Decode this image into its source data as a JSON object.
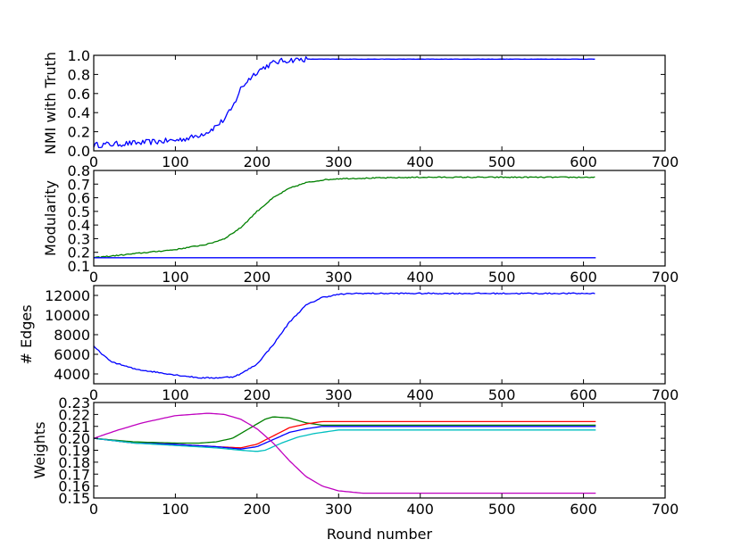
{
  "chart_data": [
    {
      "type": "line",
      "ylabel": "NMI with Truth",
      "xlabel": "",
      "xlim": [
        0,
        700
      ],
      "ylim": [
        0.0,
        1.0
      ],
      "xticks": [
        0,
        100,
        200,
        300,
        400,
        500,
        600,
        700
      ],
      "yticks": [
        0.0,
        0.2,
        0.4,
        0.6,
        0.8,
        1.0
      ],
      "ytick_decimals": 1,
      "series": [
        {
          "color": "#0000ff",
          "noise": 0.03,
          "x": [
            0,
            50,
            100,
            120,
            140,
            150,
            160,
            170,
            175,
            180,
            190,
            200,
            210,
            220,
            230,
            240,
            260,
            300,
            400,
            500,
            615
          ],
          "y": [
            0.06,
            0.08,
            0.11,
            0.14,
            0.2,
            0.26,
            0.33,
            0.45,
            0.55,
            0.65,
            0.75,
            0.83,
            0.88,
            0.92,
            0.94,
            0.95,
            0.96,
            0.96,
            0.96,
            0.96,
            0.96
          ]
        }
      ]
    },
    {
      "type": "line",
      "ylabel": "Modularity",
      "xlabel": "",
      "xlim": [
        0,
        700
      ],
      "ylim": [
        0.1,
        0.8
      ],
      "xticks": [
        0,
        100,
        200,
        300,
        400,
        500,
        600,
        700
      ],
      "yticks": [
        0.1,
        0.2,
        0.3,
        0.4,
        0.5,
        0.6,
        0.7,
        0.8
      ],
      "ytick_decimals": 1,
      "series": [
        {
          "color": "#008000",
          "noise": 0.004,
          "x": [
            0,
            50,
            100,
            140,
            160,
            180,
            200,
            220,
            240,
            260,
            280,
            300,
            350,
            400,
            615
          ],
          "y": [
            0.16,
            0.19,
            0.22,
            0.26,
            0.3,
            0.38,
            0.5,
            0.6,
            0.67,
            0.71,
            0.73,
            0.74,
            0.745,
            0.75,
            0.75
          ]
        },
        {
          "color": "#0000ff",
          "noise": 0,
          "x": [
            0,
            615
          ],
          "y": [
            0.16,
            0.16
          ]
        }
      ]
    },
    {
      "type": "line",
      "ylabel": "# Edges",
      "xlabel": "",
      "xlim": [
        0,
        700
      ],
      "ylim": [
        3000,
        13000
      ],
      "xticks": [
        0,
        100,
        200,
        300,
        400,
        500,
        600,
        700
      ],
      "yticks": [
        4000,
        6000,
        8000,
        10000,
        12000
      ],
      "ytick_decimals": 0,
      "series": [
        {
          "color": "#0000ff",
          "noise": 60,
          "x": [
            0,
            20,
            50,
            100,
            130,
            150,
            170,
            180,
            200,
            220,
            240,
            260,
            280,
            300,
            320,
            400,
            615
          ],
          "y": [
            6800,
            5300,
            4500,
            3900,
            3600,
            3600,
            3700,
            4000,
            5000,
            7000,
            9300,
            11000,
            11800,
            12100,
            12200,
            12200,
            12200
          ]
        }
      ]
    },
    {
      "type": "line",
      "ylabel": "Weights",
      "xlabel": "Round number",
      "xlim": [
        0,
        700
      ],
      "ylim": [
        0.15,
        0.23
      ],
      "xticks": [
        0,
        100,
        200,
        300,
        400,
        500,
        600,
        700
      ],
      "yticks": [
        0.15,
        0.16,
        0.17,
        0.18,
        0.19,
        0.2,
        0.21,
        0.22,
        0.23
      ],
      "ytick_decimals": 2,
      "series": [
        {
          "color": "#008000",
          "noise": 0,
          "x": [
            0,
            50,
            100,
            130,
            150,
            170,
            190,
            210,
            220,
            240,
            260,
            280,
            300,
            615
          ],
          "y": [
            0.2,
            0.197,
            0.196,
            0.196,
            0.197,
            0.2,
            0.208,
            0.216,
            0.218,
            0.217,
            0.213,
            0.211,
            0.211,
            0.211
          ]
        },
        {
          "color": "#ff0000",
          "noise": 0,
          "x": [
            0,
            50,
            100,
            150,
            180,
            200,
            220,
            240,
            260,
            280,
            300,
            615
          ],
          "y": [
            0.2,
            0.196,
            0.195,
            0.193,
            0.192,
            0.195,
            0.202,
            0.209,
            0.212,
            0.214,
            0.214,
            0.214
          ]
        },
        {
          "color": "#0000ff",
          "noise": 0,
          "x": [
            0,
            50,
            100,
            150,
            180,
            200,
            220,
            240,
            260,
            280,
            300,
            615
          ],
          "y": [
            0.2,
            0.196,
            0.195,
            0.193,
            0.191,
            0.193,
            0.199,
            0.205,
            0.208,
            0.21,
            0.21,
            0.21
          ]
        },
        {
          "color": "#00bfbf",
          "noise": 0,
          "x": [
            0,
            50,
            100,
            150,
            180,
            200,
            210,
            230,
            250,
            270,
            290,
            300,
            615
          ],
          "y": [
            0.2,
            0.196,
            0.194,
            0.192,
            0.19,
            0.189,
            0.19,
            0.196,
            0.201,
            0.204,
            0.206,
            0.207,
            0.207
          ]
        },
        {
          "color": "#bf00bf",
          "noise": 0,
          "x": [
            0,
            30,
            60,
            100,
            140,
            160,
            180,
            200,
            220,
            240,
            260,
            280,
            300,
            330,
            400,
            615
          ],
          "y": [
            0.2,
            0.207,
            0.213,
            0.219,
            0.221,
            0.22,
            0.216,
            0.208,
            0.196,
            0.181,
            0.168,
            0.16,
            0.156,
            0.154,
            0.154,
            0.154
          ]
        }
      ]
    }
  ]
}
